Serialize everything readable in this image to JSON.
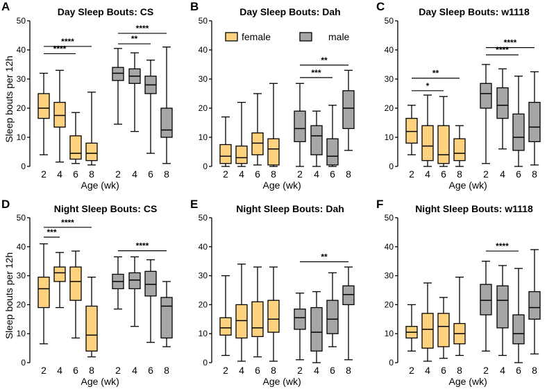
{
  "colors": {
    "female": "#FFD27F",
    "male": "#A6A6A6",
    "stroke": "#000000"
  },
  "legend": [
    {
      "label": "female",
      "group": "female"
    },
    {
      "label": "male",
      "group": "male"
    }
  ],
  "chart_data": [
    {
      "type": "boxplot",
      "letter": "A",
      "title": "Day Sleep Bouts: CS",
      "ylabel": "Sleep bouts per 12h",
      "xlabel": "Age (wk)",
      "ylim": [
        0,
        50
      ],
      "yticks": [
        0,
        10,
        20,
        30,
        40,
        50
      ],
      "categories": [
        "2",
        "4",
        "6",
        "8",
        "2",
        "4",
        "6",
        "8"
      ],
      "groups": [
        "female",
        "female",
        "female",
        "female",
        "male",
        "male",
        "male",
        "male"
      ],
      "boxes": [
        {
          "min": 4,
          "q1": 16.5,
          "median": 20,
          "q3": 25,
          "max": 32
        },
        {
          "min": 1.5,
          "q1": 13.5,
          "median": 17.5,
          "q3": 22,
          "max": 33
        },
        {
          "min": 1,
          "q1": 2.5,
          "median": 4.5,
          "q3": 10.5,
          "max": 18.5
        },
        {
          "min": 0.5,
          "q1": 2,
          "median": 4.5,
          "q3": 8,
          "max": 25.5
        },
        {
          "min": 14.5,
          "q1": 29.5,
          "median": 32,
          "q3": 34,
          "max": 40.5
        },
        {
          "min": 12,
          "q1": 28.5,
          "median": 31,
          "q3": 33.5,
          "max": 39
        },
        {
          "min": 4.5,
          "q1": 25,
          "median": 28,
          "q3": 31,
          "max": 36.5
        },
        {
          "min": 1,
          "q1": 10,
          "median": 12.5,
          "q3": 20,
          "max": 41
        }
      ],
      "significance": [
        {
          "from": 0,
          "to": 2,
          "label": "****",
          "y": 38.7
        },
        {
          "from": 0,
          "to": 3,
          "label": "****",
          "y": 41.2
        },
        {
          "from": 4,
          "to": 6,
          "label": "**",
          "y": 42.1
        },
        {
          "from": 4,
          "to": 7,
          "label": "****",
          "y": 45.7
        }
      ]
    },
    {
      "type": "boxplot",
      "letter": "B",
      "title": "Day Sleep Bouts: Dah",
      "ylabel": "",
      "xlabel": "",
      "ylim": [
        0,
        50
      ],
      "yticks": [
        0,
        10,
        20,
        30,
        40,
        50
      ],
      "categories": [
        "2",
        "4",
        "6",
        "8",
        "2",
        "4",
        "6",
        "8"
      ],
      "groups": [
        "female",
        "female",
        "female",
        "female",
        "male",
        "male",
        "male",
        "male"
      ],
      "boxes": [
        {
          "min": 0,
          "q1": 1,
          "median": 3.5,
          "q3": 7.5,
          "max": 17
        },
        {
          "min": 0,
          "q1": 1,
          "median": 3,
          "q3": 7,
          "max": 22
        },
        {
          "min": 0.5,
          "q1": 4,
          "median": 8,
          "q3": 11.5,
          "max": 25
        },
        {
          "min": 0,
          "q1": 0.5,
          "median": 6,
          "q3": 9.5,
          "max": 28.5
        },
        {
          "min": 0,
          "q1": 8.5,
          "median": 13,
          "q3": 19,
          "max": 28.5
        },
        {
          "min": 0,
          "q1": 4,
          "median": 10.5,
          "q3": 14,
          "max": 19
        },
        {
          "min": 0,
          "q1": 0.5,
          "median": 3.5,
          "q3": 9.5,
          "max": 21
        },
        {
          "min": 5.5,
          "q1": 13,
          "median": 20,
          "q3": 26,
          "max": 33
        }
      ],
      "significance": [
        {
          "from": 4,
          "to": 6,
          "label": "***",
          "y": 30.5
        },
        {
          "from": 4,
          "to": 7,
          "label": "**",
          "y": 34.8
        }
      ]
    },
    {
      "type": "boxplot",
      "letter": "C",
      "title": "Day Sleep Bouts: w1118",
      "ylabel": "",
      "xlabel": "",
      "ylim": [
        0,
        50
      ],
      "yticks": [
        0,
        10,
        20,
        30,
        40,
        50
      ],
      "categories": [
        "2",
        "4",
        "6",
        "8",
        "2",
        "4",
        "6",
        "8"
      ],
      "groups": [
        "female",
        "female",
        "female",
        "female",
        "male",
        "male",
        "male",
        "male"
      ],
      "boxes": [
        {
          "min": 4,
          "q1": 8,
          "median": 12,
          "q3": 16.5,
          "max": 21
        },
        {
          "min": 0,
          "q1": 2,
          "median": 7,
          "q3": 14,
          "max": 24.5
        },
        {
          "min": 0,
          "q1": 1,
          "median": 4,
          "q3": 14,
          "max": 24
        },
        {
          "min": 0,
          "q1": 2,
          "median": 4.5,
          "q3": 9.5,
          "max": 14
        },
        {
          "min": 1,
          "q1": 20,
          "median": 25,
          "q3": 28.5,
          "max": 35
        },
        {
          "min": 6,
          "q1": 16.5,
          "median": 21,
          "q3": 27,
          "max": 33.5
        },
        {
          "min": 0,
          "q1": 5.5,
          "median": 10,
          "q3": 18,
          "max": 31
        },
        {
          "min": 0.5,
          "q1": 8.5,
          "median": 13.5,
          "q3": 22,
          "max": 32.5
        }
      ],
      "significance": [
        {
          "from": 0,
          "to": 2,
          "label": "*",
          "y": 26
        },
        {
          "from": 0,
          "to": 3,
          "label": "**",
          "y": 30.3
        },
        {
          "from": 4,
          "to": 6,
          "label": "****",
          "y": 38.3
        },
        {
          "from": 4,
          "to": 7,
          "label": "****",
          "y": 40.8
        }
      ]
    },
    {
      "type": "boxplot",
      "letter": "D",
      "title": "Night Sleep Bouts: CS",
      "ylabel": "Sleep bouts per 12h",
      "xlabel": "Age (wk)",
      "ylim": [
        0,
        50
      ],
      "yticks": [
        0,
        10,
        20,
        30,
        40,
        50
      ],
      "categories": [
        "2",
        "4",
        "6",
        "8",
        "2",
        "4",
        "6",
        "8"
      ],
      "groups": [
        "female",
        "female",
        "female",
        "female",
        "male",
        "male",
        "male",
        "male"
      ],
      "boxes": [
        {
          "min": 6.5,
          "q1": 19,
          "median": 25.5,
          "q3": 29.5,
          "max": 41
        },
        {
          "min": 19,
          "q1": 28,
          "median": 31,
          "q3": 33,
          "max": 38
        },
        {
          "min": 8.5,
          "q1": 21.5,
          "median": 28,
          "q3": 33,
          "max": 38.5
        },
        {
          "min": 2,
          "q1": 4,
          "median": 9.5,
          "q3": 19.5,
          "max": 29.5
        },
        {
          "min": 18.5,
          "q1": 25.5,
          "median": 28,
          "q3": 30.5,
          "max": 36.5
        },
        {
          "min": 12.5,
          "q1": 25.5,
          "median": 28.5,
          "q3": 31,
          "max": 36.5
        },
        {
          "min": 7,
          "q1": 23,
          "median": 27,
          "q3": 31.5,
          "max": 35.5
        },
        {
          "min": 5.5,
          "q1": 8.5,
          "median": 19.5,
          "q3": 22.5,
          "max": 28
        }
      ],
      "significance": [
        {
          "from": 0,
          "to": 1,
          "label": "***",
          "y": 43.3
        },
        {
          "from": 0,
          "to": 3,
          "label": "****",
          "y": 46.7
        },
        {
          "from": 4,
          "to": 7,
          "label": "****",
          "y": 38.6
        }
      ]
    },
    {
      "type": "boxplot",
      "letter": "E",
      "title": "Night Sleep Bouts: Dah",
      "ylabel": "",
      "xlabel": "Age (wk)",
      "ylim": [
        0,
        50
      ],
      "yticks": [
        0,
        10,
        20,
        30,
        40,
        50
      ],
      "categories": [
        "2",
        "4",
        "6",
        "8",
        "2",
        "4",
        "6",
        "8"
      ],
      "groups": [
        "female",
        "female",
        "female",
        "female",
        "male",
        "male",
        "male",
        "male"
      ],
      "boxes": [
        {
          "min": 2.5,
          "q1": 9.5,
          "median": 12,
          "q3": 15.5,
          "max": 30
        },
        {
          "min": 0.5,
          "q1": 8.5,
          "median": 14.5,
          "q3": 20,
          "max": 34
        },
        {
          "min": 2,
          "q1": 9,
          "median": 12,
          "q3": 21,
          "max": 33
        },
        {
          "min": 0.5,
          "q1": 10.5,
          "median": 15,
          "q3": 21.5,
          "max": 33
        },
        {
          "min": 1,
          "q1": 11.5,
          "median": 15.5,
          "q3": 18.5,
          "max": 24
        },
        {
          "min": 0,
          "q1": 4,
          "median": 10.5,
          "q3": 19,
          "max": 24.5
        },
        {
          "min": 5.5,
          "q1": 10,
          "median": 15,
          "q3": 21.5,
          "max": 31
        },
        {
          "min": 1,
          "q1": 20,
          "median": 23.5,
          "q3": 26.5,
          "max": 33
        }
      ],
      "significance": [
        {
          "from": 4,
          "to": 7,
          "label": "**",
          "y": 34.8
        }
      ]
    },
    {
      "type": "boxplot",
      "letter": "F",
      "title": "Night Sleep Bouts: w1118",
      "ylabel": "",
      "xlabel": "",
      "ylim": [
        0,
        50
      ],
      "yticks": [
        0,
        10,
        20,
        30,
        40,
        50
      ],
      "categories": [
        "2",
        "4",
        "6",
        "8",
        "2",
        "4",
        "6",
        "8"
      ],
      "groups": [
        "female",
        "female",
        "female",
        "female",
        "male",
        "male",
        "male",
        "male"
      ],
      "boxes": [
        {
          "min": 4,
          "q1": 8.5,
          "median": 10.5,
          "q3": 12.5,
          "max": 20
        },
        {
          "min": 0.5,
          "q1": 5,
          "median": 11.5,
          "q3": 17,
          "max": 27.5
        },
        {
          "min": 1.5,
          "q1": 5.5,
          "median": 12.5,
          "q3": 17,
          "max": 22.5
        },
        {
          "min": 2.5,
          "q1": 6.5,
          "median": 10,
          "q3": 13.5,
          "max": 29.5
        },
        {
          "min": 4,
          "q1": 16.5,
          "median": 21.5,
          "q3": 27,
          "max": 35
        },
        {
          "min": 2.5,
          "q1": 12,
          "median": 21.5,
          "q3": 26.5,
          "max": 33.5
        },
        {
          "min": 0,
          "q1": 6.5,
          "median": 10,
          "q3": 16.5,
          "max": 32.5
        },
        {
          "min": 3,
          "q1": 15,
          "median": 19,
          "q3": 24.5,
          "max": 39
        }
      ],
      "significance": [
        {
          "from": 4,
          "to": 6,
          "label": "****",
          "y": 38.5
        }
      ]
    }
  ]
}
